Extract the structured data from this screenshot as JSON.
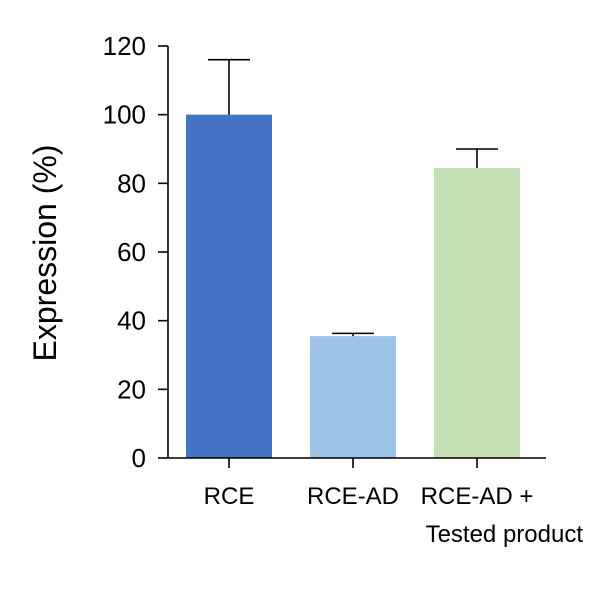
{
  "chart_data": {
    "type": "bar",
    "title": "",
    "xlabel": "",
    "ylabel": "Expression (%)",
    "ylim": [
      0,
      120
    ],
    "yticks": [
      0,
      20,
      40,
      60,
      80,
      100,
      120
    ],
    "categories": [
      {
        "lines": [
          "RCE"
        ]
      },
      {
        "lines": [
          "RCE-AD"
        ]
      },
      {
        "lines": [
          "RCE-AD +",
          "Tested product"
        ]
      }
    ],
    "values": [
      100,
      35.5,
      84.5
    ],
    "errors": [
      16,
      0.8,
      5.5
    ],
    "colors": [
      "#4472c4",
      "#9dc3e6",
      "#c5e0b4"
    ],
    "grid": false,
    "legend": "none"
  }
}
